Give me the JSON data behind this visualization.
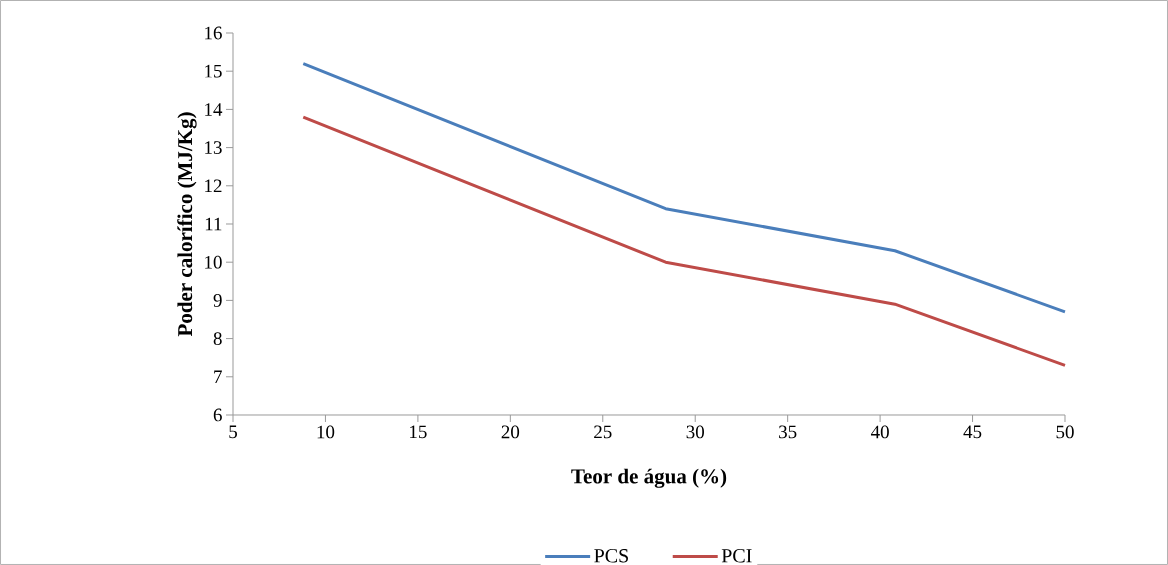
{
  "chart_data": {
    "type": "line",
    "xlabel": "Teor de água (%)",
    "ylabel": "Poder calorífico (MJ/Kg)",
    "x": [
      8.8,
      28.4,
      40.8,
      50
    ],
    "series": [
      {
        "name": "PCS",
        "color": "#4a7ebb",
        "values": [
          15.2,
          11.4,
          10.3,
          8.7
        ]
      },
      {
        "name": "PCI",
        "color": "#be4b48",
        "values": [
          13.8,
          10.0,
          8.9,
          7.3
        ]
      }
    ],
    "xlim": [
      5,
      50
    ],
    "ylim": [
      6,
      16
    ],
    "xticks": [
      5,
      10,
      15,
      20,
      25,
      30,
      35,
      40,
      45,
      50
    ],
    "yticks": [
      6,
      7,
      8,
      9,
      10,
      11,
      12,
      13,
      14,
      15,
      16
    ],
    "grid": false,
    "legend": "bottom",
    "marker": "none",
    "line_style": "solid"
  }
}
